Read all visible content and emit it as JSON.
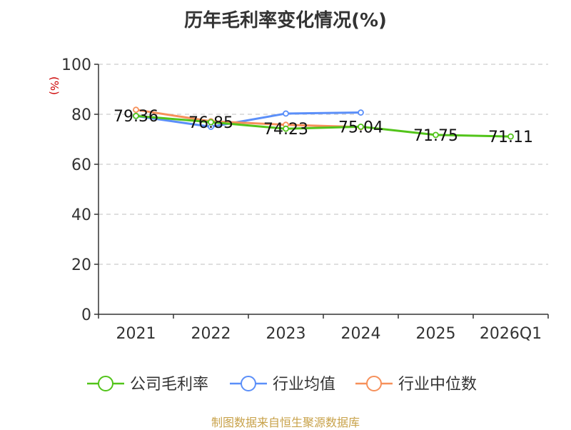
{
  "chart_data": {
    "type": "line",
    "title": "历年毛利率变化情况(%)",
    "ylabel": "(%)",
    "xlabel": "",
    "categories": [
      "2021",
      "2022",
      "2023",
      "2024",
      "2025",
      "2026Q1"
    ],
    "ylim": [
      0,
      100
    ],
    "yticks": [
      0,
      20,
      40,
      60,
      80,
      100
    ],
    "grid": true,
    "legend_position": "bottom",
    "series": [
      {
        "name": "公司毛利率",
        "color": "#52c41a",
        "values": [
          79.36,
          76.85,
          74.23,
          75.04,
          71.75,
          71.11
        ],
        "labels": [
          "79.36",
          "76.85",
          "74.23",
          "75.04",
          "71.75",
          "71.11"
        ]
      },
      {
        "name": "行业均值",
        "color": "#5b8ff9",
        "values": [
          79.3,
          75.0,
          80.3,
          80.7,
          null,
          null
        ]
      },
      {
        "name": "行业中位数",
        "color": "#f6905a",
        "values": [
          81.8,
          77.2,
          75.8,
          74.9,
          null,
          null
        ]
      }
    ]
  },
  "source": "制图数据来自恒生聚源数据库"
}
